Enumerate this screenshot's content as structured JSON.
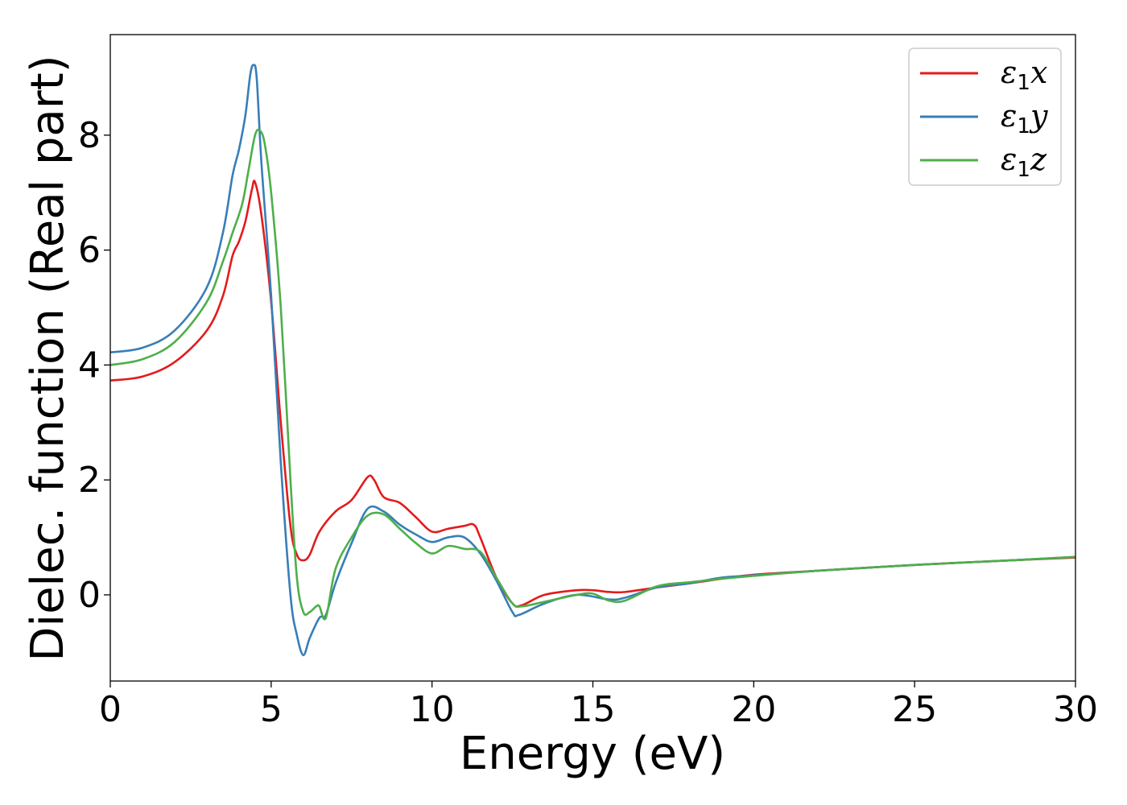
{
  "chart_data": {
    "type": "line",
    "title": "",
    "xlabel": "Energy (eV)",
    "ylabel": "Dielec. function (Real part)",
    "xlim": [
      0,
      30
    ],
    "ylim": [
      -1.5,
      9.75
    ],
    "xticks": [
      0,
      5,
      10,
      15,
      20,
      25,
      30
    ],
    "xtick_labels": [
      "0",
      "5",
      "10",
      "15",
      "20",
      "25",
      "30"
    ],
    "yticks": [
      0,
      2,
      4,
      6,
      8
    ],
    "ytick_labels": [
      "0",
      "2",
      "4",
      "6",
      "8"
    ],
    "grid": false,
    "legend_placement": "top-right",
    "series": [
      {
        "name": "ε1x",
        "legend_base": "ε",
        "legend_sub": "1",
        "legend_suffix": "x",
        "color": "#e41a1c",
        "x": [
          0,
          1,
          2,
          3,
          3.5,
          3.8,
          4.0,
          4.2,
          4.4,
          4.5,
          4.7,
          5.0,
          5.3,
          5.6,
          5.8,
          6.0,
          6.2,
          6.5,
          7.0,
          7.5,
          8.0,
          8.2,
          8.5,
          9.0,
          9.5,
          10.0,
          10.5,
          11.0,
          11.3,
          11.5,
          12.0,
          12.5,
          12.8,
          13.5,
          14.5,
          15.0,
          15.5,
          16.0,
          17.0,
          18.0,
          19.0,
          20.0,
          22.0,
          25.0,
          28.0,
          30.0
        ],
        "y": [
          3.73,
          3.8,
          4.05,
          4.6,
          5.2,
          5.9,
          6.15,
          6.5,
          7.05,
          7.18,
          6.6,
          5.1,
          3.0,
          1.2,
          0.7,
          0.6,
          0.7,
          1.1,
          1.45,
          1.65,
          2.05,
          2.0,
          1.7,
          1.6,
          1.35,
          1.1,
          1.15,
          1.2,
          1.22,
          1.0,
          0.3,
          -0.15,
          -0.18,
          0.0,
          0.08,
          0.08,
          0.05,
          0.05,
          0.13,
          0.2,
          0.28,
          0.35,
          0.42,
          0.52,
          0.6,
          0.65
        ]
      },
      {
        "name": "ε1y",
        "legend_base": "ε",
        "legend_sub": "1",
        "legend_suffix": "y",
        "color": "#377eb8",
        "x": [
          0,
          1,
          2,
          3,
          3.5,
          3.8,
          4.0,
          4.2,
          4.35,
          4.45,
          4.55,
          4.7,
          5.0,
          5.3,
          5.6,
          5.8,
          6.0,
          6.2,
          6.5,
          6.7,
          7.0,
          7.5,
          8.0,
          8.5,
          9.0,
          9.5,
          10.0,
          10.5,
          11.0,
          11.5,
          12.0,
          12.5,
          12.7,
          13.5,
          14.5,
          15.5,
          16.0,
          17.0,
          18.0,
          19.0,
          20.0,
          22.0,
          25.0,
          28.0,
          30.0
        ],
        "y": [
          4.22,
          4.3,
          4.6,
          5.35,
          6.3,
          7.3,
          7.75,
          8.35,
          9.05,
          9.22,
          9.0,
          7.5,
          5.2,
          2.3,
          0.0,
          -0.7,
          -1.05,
          -0.75,
          -0.4,
          -0.35,
          0.2,
          0.9,
          1.5,
          1.45,
          1.22,
          1.05,
          0.92,
          1.0,
          1.0,
          0.72,
          0.25,
          -0.3,
          -0.35,
          -0.15,
          0.0,
          -0.08,
          -0.05,
          0.13,
          0.2,
          0.3,
          0.34,
          0.42,
          0.52,
          0.6,
          0.66
        ]
      },
      {
        "name": "ε1z",
        "legend_base": "ε",
        "legend_sub": "1",
        "legend_suffix": "z",
        "color": "#4daf4a",
        "x": [
          0,
          1,
          2,
          3,
          3.5,
          3.8,
          4.1,
          4.3,
          4.5,
          4.65,
          4.8,
          5.0,
          5.3,
          5.6,
          5.8,
          6.0,
          6.2,
          6.4,
          6.5,
          6.7,
          7.0,
          7.5,
          8.0,
          8.5,
          9.0,
          9.5,
          10.0,
          10.5,
          11.0,
          11.5,
          12.0,
          12.5,
          12.8,
          13.5,
          14.5,
          15.0,
          15.5,
          16.0,
          17.0,
          18.0,
          19.0,
          20.0,
          22.0,
          25.0,
          28.0,
          30.0
        ],
        "y": [
          4.0,
          4.1,
          4.4,
          5.1,
          5.8,
          6.3,
          6.8,
          7.4,
          8.0,
          8.08,
          7.85,
          7.0,
          5.0,
          2.0,
          0.3,
          -0.3,
          -0.3,
          -0.2,
          -0.2,
          -0.4,
          0.45,
          1.0,
          1.38,
          1.4,
          1.15,
          0.9,
          0.72,
          0.85,
          0.8,
          0.75,
          0.3,
          -0.15,
          -0.2,
          -0.12,
          0.0,
          0.02,
          -0.1,
          -0.1,
          0.15,
          0.22,
          0.28,
          0.33,
          0.42,
          0.52,
          0.6,
          0.66
        ]
      }
    ]
  }
}
